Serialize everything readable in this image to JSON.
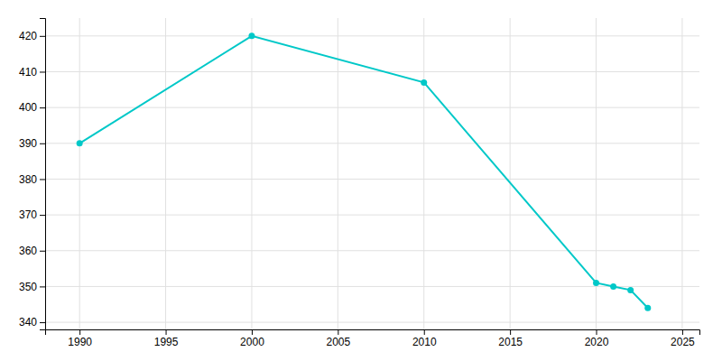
{
  "chart_data": {
    "type": "line",
    "x": [
      1990,
      2000,
      2010,
      2020,
      2021,
      2022,
      2023
    ],
    "values": [
      390,
      420,
      407,
      351,
      350,
      349,
      344
    ],
    "color": "#00c8c8",
    "marker": "circle",
    "xlim": [
      1988,
      2026
    ],
    "ylim": [
      338,
      425
    ],
    "xticks": [
      1990,
      1995,
      2000,
      2005,
      2010,
      2015,
      2020,
      2025
    ],
    "yticks": [
      340,
      350,
      360,
      370,
      380,
      390,
      400,
      410,
      420
    ],
    "grid": true
  }
}
